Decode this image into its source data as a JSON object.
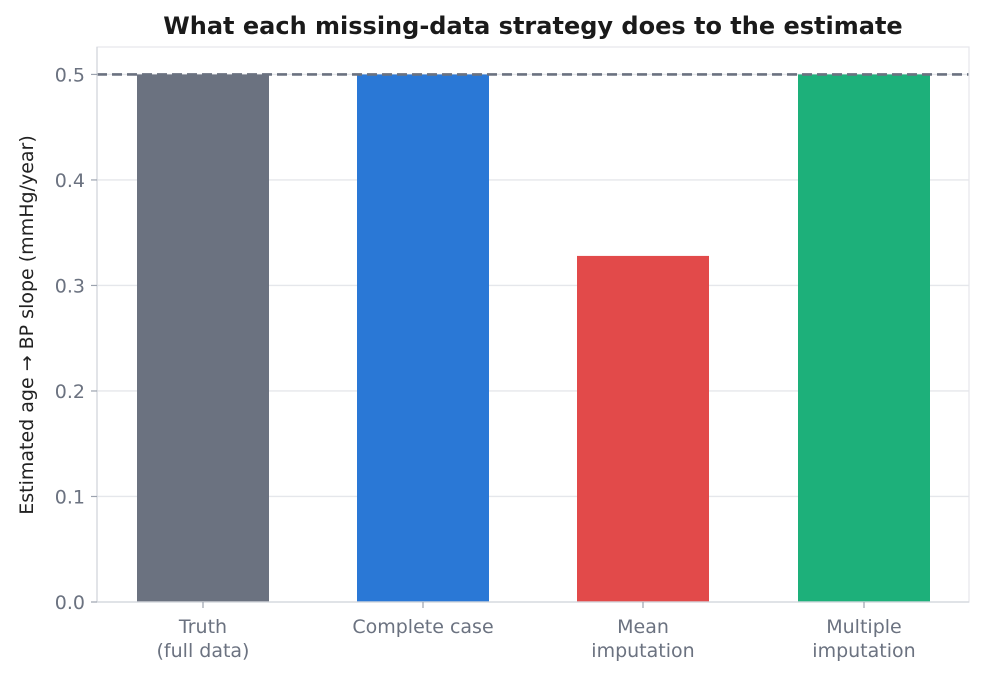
{
  "chart_data": {
    "type": "bar",
    "title": "What each missing-data strategy does to the estimate",
    "xlabel": "",
    "ylabel": "Estimated age → BP slope (mmHg/year)",
    "categories": [
      "Truth\n(full data)",
      "Complete case",
      "Mean\nimputation",
      "Multiple\nimputation"
    ],
    "values": [
      0.5,
      0.5,
      0.328,
      0.5
    ],
    "colors": [
      "#6b7280",
      "#2a78d6",
      "#e24a4a",
      "#1db07a"
    ],
    "ylim": [
      0,
      0.526
    ],
    "yticks": [
      0.0,
      0.1,
      0.2,
      0.3,
      0.4,
      0.5
    ],
    "ytick_labels": [
      "0.0",
      "0.1",
      "0.2",
      "0.3",
      "0.4",
      "0.5"
    ],
    "reference_line": {
      "value": 0.5,
      "style": "dashed",
      "color": "#6b7280"
    },
    "grid": "horizontal",
    "legend": "none"
  }
}
